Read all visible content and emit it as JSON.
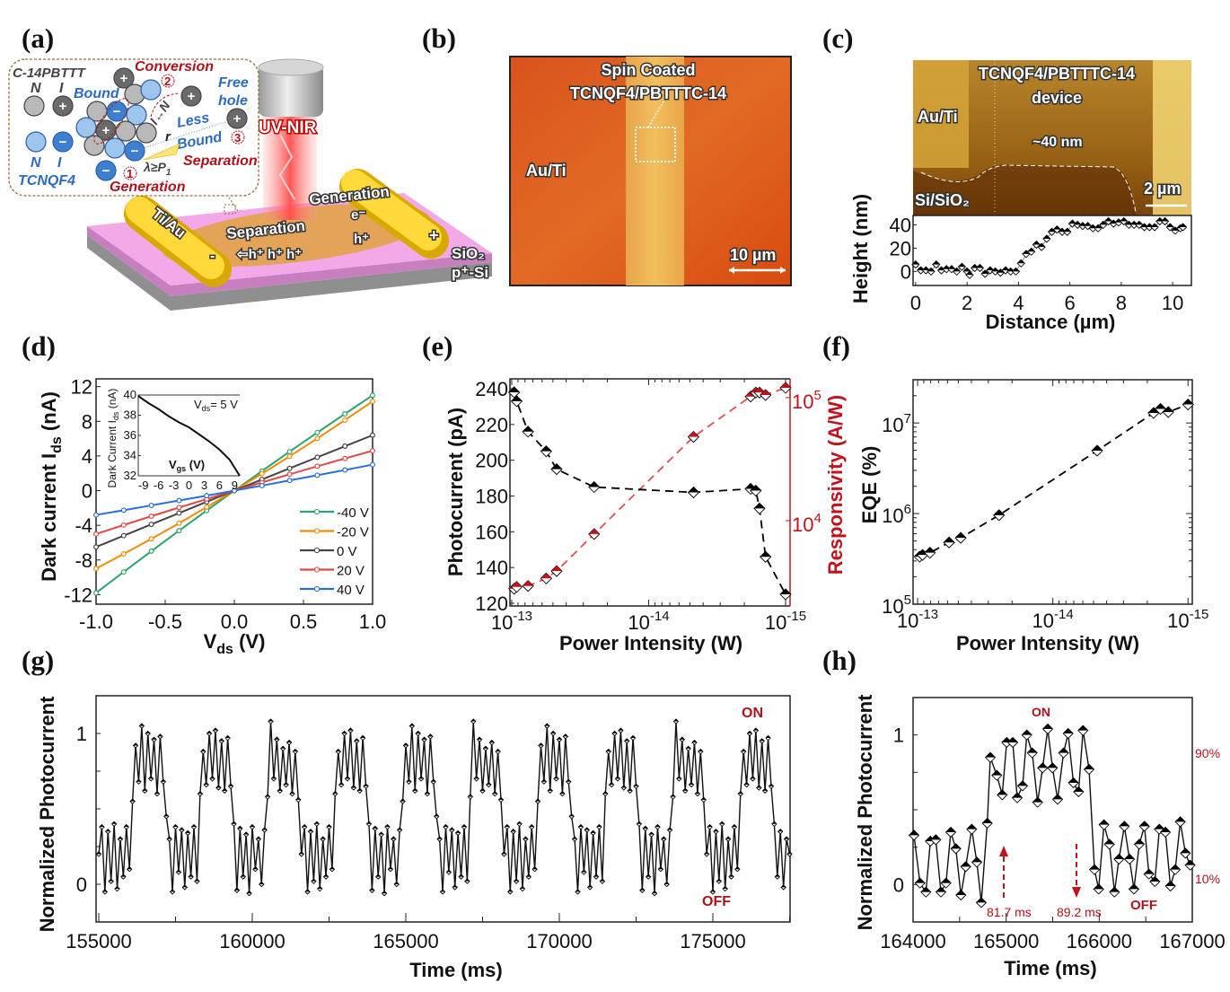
{
  "panel_labels": [
    "(a)",
    "(b)",
    "(c)",
    "(d)",
    "(e)",
    "(f)",
    "(g)",
    "(h)"
  ],
  "panel_a": {
    "polymer": "C-14PBTTT",
    "polymer_n": "N",
    "polymer_i": "I",
    "dopant_n": "N",
    "dopant_i": "I",
    "dopant": "TCNQF4",
    "bound": "Bound",
    "conversion": "Conversion",
    "step2": "2",
    "free": "Free",
    "hole": "hole",
    "i_n": "I↔N",
    "r": "r",
    "less": "Less",
    "less_bound": "Bound",
    "step3": "3",
    "lambda": "λ≥P",
    "lambda_sub": "1",
    "separation": "Separation",
    "step1": "1",
    "generation": "Generation",
    "light": "UV-NIR",
    "electrode": "Ti/Au",
    "dev_generation": "Generation",
    "electron": "e⁻",
    "hole_gen": "h⁺",
    "dev_separation": "Separation",
    "holes": "⇦h⁺  h⁺  h⁺",
    "minus": "-",
    "plus": "+",
    "oxide": "SiO₂",
    "substrate": "p⁺-Si",
    "colors": {
      "polymer": "#b9b9b9",
      "polymer_ion": "#6a6a6a",
      "dopant": "#9ec5ee",
      "dopant_ion": "#3f7fd2",
      "gold": "#f2c200",
      "film": "#e3a45a",
      "oxide": "#f2a6e6",
      "beam": "#ff5a5a"
    }
  },
  "panel_b": {
    "title1": "Spin Coated",
    "title2": "TCNQF4/PBTTTC-14",
    "electrode": "Au/Ti",
    "scale": "10 µm"
  },
  "panel_c": {
    "title1": "TCNQF4/PBTTTC-14",
    "title2": "device",
    "electrode": "Au/Ti",
    "thickness": "~40 nm",
    "substrate": "Si/SiO₂",
    "scale": "2 µm"
  },
  "chart_data": [
    {
      "id": "c-profile",
      "type": "scatter",
      "xlabel": "Distance (µm)",
      "ylabel": "Height (nm)",
      "xlim": [
        -0.1,
        10.73
      ],
      "ylim": [
        -12,
        48
      ],
      "xticks": [
        0,
        2,
        4,
        6,
        8,
        10
      ],
      "yticks": [
        0,
        20,
        40
      ],
      "x": [
        0,
        0.2,
        0.4,
        0.6,
        0.8,
        1.0,
        1.2,
        1.4,
        1.6,
        1.8,
        2.0,
        2.1,
        2.3,
        2.5,
        2.7,
        2.9,
        3.1,
        3.3,
        3.5,
        3.7,
        3.9,
        4.1,
        4.3,
        4.5,
        4.7,
        4.9,
        5.1,
        5.3,
        5.5,
        5.7,
        5.9,
        6.1,
        6.3,
        6.5,
        6.7,
        6.9,
        7.1,
        7.3,
        7.5,
        7.7,
        7.9,
        8.1,
        8.3,
        8.5,
        8.7,
        8.9,
        9.1,
        9.3,
        9.5,
        9.7,
        9.9,
        10.1,
        10.3,
        10.4
      ],
      "y": [
        6,
        1,
        1,
        0,
        6,
        1,
        2,
        2,
        0,
        4,
        0,
        -3,
        3,
        3,
        -2,
        1,
        0,
        -1,
        1,
        0,
        0,
        7,
        15,
        17,
        23,
        21,
        28,
        34,
        36,
        34,
        34,
        41,
        40,
        39,
        39,
        37,
        37,
        40,
        43,
        41,
        42,
        43,
        40,
        40,
        40,
        38,
        38,
        38,
        43,
        43,
        38,
        35,
        37,
        38
      ]
    },
    {
      "id": "d-iv",
      "type": "line",
      "xlabel_parts": [
        "V",
        "ds",
        " (V)"
      ],
      "ylabel_parts": [
        "Dark current I",
        "ds",
        " (nA)"
      ],
      "xlim": [
        -1,
        1
      ],
      "ylim": [
        -13.1,
        12.9
      ],
      "xticks": [
        -1.0,
        -0.5,
        0.0,
        0.5,
        1.0
      ],
      "xtick_labels": [
        "-1.0",
        "-0.5",
        "0.0",
        "0.5",
        "1.0"
      ],
      "yticks": [
        12,
        8,
        4,
        0,
        -4,
        -8,
        -12
      ],
      "legend_position": "bottom-right",
      "x": [
        -1,
        -0.8,
        -0.6,
        -0.4,
        -0.2,
        0,
        0.2,
        0.4,
        0.6,
        0.8,
        1
      ],
      "series": [
        {
          "name": "-40 V",
          "color": "#2ea36b",
          "values": [
            -11.8,
            -9.38,
            -6.98,
            -4.62,
            -2.3,
            0,
            2.26,
            4.5,
            6.7,
            8.86,
            11.0
          ]
        },
        {
          "name": "-20 V",
          "color": "#f08c00",
          "values": [
            -9.0,
            -7.3,
            -5.56,
            -3.76,
            -1.9,
            0,
            1.96,
            3.96,
            6.02,
            8.14,
            10.3
          ]
        },
        {
          "name": "0 V",
          "color": "#444444",
          "values": [
            -6.5,
            -5.19,
            -3.89,
            -2.59,
            -1.29,
            0,
            1.29,
            2.57,
            3.85,
            5.13,
            6.4
          ]
        },
        {
          "name": "20 V",
          "color": "#e04848",
          "values": [
            -5.0,
            -3.97,
            -2.95,
            -1.95,
            -0.97,
            0,
            0.95,
            1.89,
            2.81,
            3.71,
            4.6
          ]
        },
        {
          "name": "40 V",
          "color": "#2a6fd6",
          "values": [
            -2.8,
            -2.26,
            -1.7,
            -1.14,
            -0.58,
            0,
            0.58,
            1.18,
            1.78,
            2.38,
            3.0
          ]
        }
      ]
    },
    {
      "id": "d-inset",
      "type": "line",
      "xlabel_parts": [
        "V",
        "gs",
        " (V)"
      ],
      "ylabel_parts": [
        "Dark Current I",
        "ds",
        "  (nA)"
      ],
      "annotation_parts": [
        "V",
        "ds",
        "= 5 V"
      ],
      "xlim": [
        -10,
        10
      ],
      "ylim": [
        32,
        40
      ],
      "xticks": [
        -9,
        -6,
        -3,
        0,
        3,
        6,
        9
      ],
      "yticks": [
        32,
        34,
        36,
        38,
        40
      ],
      "x": [
        -10,
        -8,
        -6,
        -4,
        -2,
        0,
        2,
        4,
        6,
        8,
        10
      ],
      "values": [
        39.9,
        39.2,
        38.6,
        37.9,
        37.3,
        36.8,
        36.1,
        35.4,
        34.6,
        33.6,
        32.0
      ]
    },
    {
      "id": "e-photocurrent",
      "type": "scatter",
      "xlabel": "Power Intensity (W)",
      "ylabel": "Photocurrent (pA)",
      "ylabel_right": "Responsivity (A/W)",
      "x_scale": "log-reversed",
      "y_right_scale": "log",
      "xlim": [
        1.03e-13,
        9.27e-16
      ],
      "ylim": [
        118.5,
        245.5
      ],
      "ylim_right": [
        2030,
        142000
      ],
      "xticks": [
        1e-13,
        1e-14,
        1e-15
      ],
      "yticks": [
        120,
        140,
        160,
        180,
        200,
        220,
        240
      ],
      "yticks_right": [
        10000,
        100000
      ],
      "x": [
        9.6e-14,
        9.2e-14,
        7.6e-14,
        5.6e-14,
        4.7e-14,
        2.5e-14,
        4.7e-15,
        1.8e-15,
        1.65e-15,
        1.55e-15,
        1.4e-15,
        1e-15
      ],
      "series": [
        {
          "axis": "left",
          "color": "#000000",
          "values": [
            238,
            233,
            216,
            205,
            195,
            185,
            182,
            184,
            183,
            173,
            146,
            125
          ]
        },
        {
          "axis": "right",
          "color": "#c0141c",
          "values": [
            2800,
            2900,
            2950,
            3400,
            3900,
            7800,
            48000,
            102000,
            110000,
            110000,
            105000,
            120000
          ]
        }
      ]
    },
    {
      "id": "f-eqe",
      "type": "scatter",
      "xlabel": "Power Intensity (W)",
      "ylabel": "EQE (%)",
      "x_scale": "log-reversed",
      "y_scale": "log",
      "xlim": [
        1.08e-13,
        9.3e-16
      ],
      "ylim": [
        100000,
        30000000
      ],
      "xticks": [
        1e-13,
        1e-14,
        1e-15
      ],
      "yticks": [
        100000,
        1000000,
        10000000
      ],
      "x": [
        9.65e-14,
        9.2e-14,
        8.1e-14,
        5.85e-14,
        4.8e-14,
        2.5e-14,
        4.7e-15,
        1.8e-15,
        1.6e-15,
        1.4e-15,
        1e-15
      ],
      "values": [
        335000,
        350000,
        370000,
        480000,
        540000,
        960000,
        4950000,
        12900000,
        14300000,
        13200000,
        16000000
      ]
    },
    {
      "id": "g-cycles",
      "type": "line",
      "xlabel": "Time (ms)",
      "ylabel": "Normalized Photocurrent",
      "xlim": [
        154912,
        177515
      ],
      "ylim": [
        -0.25,
        1.25
      ],
      "xticks": [
        155000,
        160000,
        165000,
        170000,
        175000
      ],
      "yticks": [
        0,
        1
      ],
      "annotations": {
        "on": "ON",
        "off": "OFF"
      },
      "x_start": 155000,
      "x_step": 100,
      "values": [
        0.2,
        0.38,
        -0.05,
        0.35,
        0.02,
        0.4,
        -0.03,
        0.3,
        0.05,
        0.38,
        0.1,
        0.55,
        0.92,
        0.68,
        1.05,
        0.62,
        1.0,
        0.7,
        0.96,
        0.6,
        0.98,
        0.68,
        0.45,
        0.3,
        -0.05,
        0.38,
        0.08,
        0.36,
        -0.02,
        0.34,
        0.05,
        0.38,
        0.02,
        0.6,
        0.88,
        0.66,
        1.0,
        0.7,
        1.02,
        0.64,
        0.95,
        0.62,
        0.97,
        0.65,
        0.4,
        -0.04,
        0.37,
        0.05,
        0.33,
        -0.06,
        0.38,
        0.1,
        0.3,
        0.0,
        0.36,
        0.58,
        1.08,
        0.7,
        0.96,
        0.62,
        0.9,
        0.66,
        0.94,
        0.6,
        0.88,
        0.56,
        0.2,
        0.38,
        -0.05,
        0.35,
        0.02,
        0.4,
        -0.03,
        0.3,
        0.05,
        0.38,
        0.1,
        0.6,
        0.88,
        0.66,
        1.0,
        0.7,
        1.02,
        0.64,
        0.95,
        0.62,
        0.97,
        0.65,
        0.4,
        -0.04,
        0.37,
        0.05,
        0.33,
        -0.06,
        0.38,
        0.1,
        0.3,
        0.0,
        0.36,
        0.55,
        0.92,
        0.68,
        1.05,
        0.62,
        1.0,
        0.7,
        0.96,
        0.6,
        0.98,
        0.68,
        0.45,
        0.3,
        -0.05,
        0.38,
        0.08,
        0.36,
        -0.02,
        0.34,
        0.05,
        0.38,
        0.02,
        0.58,
        1.08,
        0.7,
        0.96,
        0.62,
        0.9,
        0.66,
        0.94,
        0.6,
        0.88,
        0.56,
        0.2,
        0.38,
        -0.05,
        0.35,
        0.02,
        0.4,
        -0.03,
        0.3,
        0.05,
        0.38,
        0.1,
        0.55,
        0.92,
        0.68,
        1.05,
        0.62,
        1.0,
        0.7,
        0.96,
        0.6,
        0.98,
        0.68,
        0.45,
        0.3,
        -0.05,
        0.38,
        0.08,
        0.36,
        -0.02,
        0.34,
        0.05,
        0.38,
        0.02,
        0.6,
        0.88,
        0.66,
        1.0,
        0.7,
        1.02,
        0.64,
        0.95,
        0.62,
        0.97,
        0.65,
        0.4,
        -0.04,
        0.37,
        0.05,
        0.33,
        -0.06,
        0.38,
        0.1,
        0.3,
        0.0,
        0.36,
        0.58,
        1.08,
        0.7,
        0.96,
        0.62,
        0.9,
        0.66,
        0.94,
        0.6,
        0.88,
        0.56,
        0.2,
        0.38,
        -0.05,
        0.35,
        0.02,
        0.4,
        -0.03,
        0.3,
        0.05,
        0.38,
        0.1,
        0.6,
        0.88,
        0.66,
        1.0,
        0.7,
        1.02,
        0.64,
        0.95,
        0.62,
        0.97,
        0.65,
        0.4,
        0.05,
        0.35,
        -0.02,
        0.3,
        0.2
      ]
    },
    {
      "id": "h-single-cycle",
      "type": "line",
      "xlabel": "Time (ms)",
      "ylabel": "Normalized Photocurrent",
      "xlim": [
        164000,
        167000
      ],
      "ylim": [
        -0.25,
        1.25
      ],
      "xticks": [
        164000,
        165000,
        166000,
        167000
      ],
      "yticks": [
        0,
        1
      ],
      "annotations": {
        "on": "ON",
        "off": "OFF",
        "level_high": "90%",
        "level_low": "10%",
        "rise_time": "81.7 ms",
        "fall_time": "89.2 ms"
      },
      "x": [
        164010,
        164074,
        164138,
        164186,
        164244,
        164299,
        164354,
        164405,
        164460,
        164514,
        164566,
        164630,
        164685,
        164733,
        164797,
        164830,
        164900,
        164958,
        165006,
        165071,
        165119,
        165177,
        165222,
        165280,
        165338,
        165392,
        165447,
        165498,
        165553,
        165617,
        165666,
        165723,
        165778,
        165826,
        165891,
        165949,
        165994,
        166051,
        166109,
        166164,
        166212,
        166270,
        166325,
        166373,
        166431,
        166486,
        166534,
        166598,
        166646,
        166711,
        166765,
        166817,
        166871,
        166926,
        166977
      ],
      "values": [
        0.33,
        0.01,
        -0.05,
        0.29,
        0.3,
        -0.05,
        0.01,
        0.35,
        0.24,
        -0.07,
        0.12,
        0.37,
        0.15,
        -0.12,
        0.41,
        0.85,
        0.73,
        0.6,
        0.95,
        0.95,
        0.58,
        0.66,
        1.0,
        0.88,
        0.55,
        0.78,
        1.04,
        0.78,
        0.57,
        0.88,
        1.01,
        0.68,
        0.62,
        1.03,
        0.77,
        0.1,
        -0.03,
        0.4,
        0.27,
        -0.05,
        0.17,
        0.39,
        0.17,
        -0.03,
        0.27,
        0.39,
        0.07,
        0.02,
        0.37,
        0.35,
        -0.01,
        0.1,
        0.42,
        0.21,
        0.13
      ]
    }
  ]
}
